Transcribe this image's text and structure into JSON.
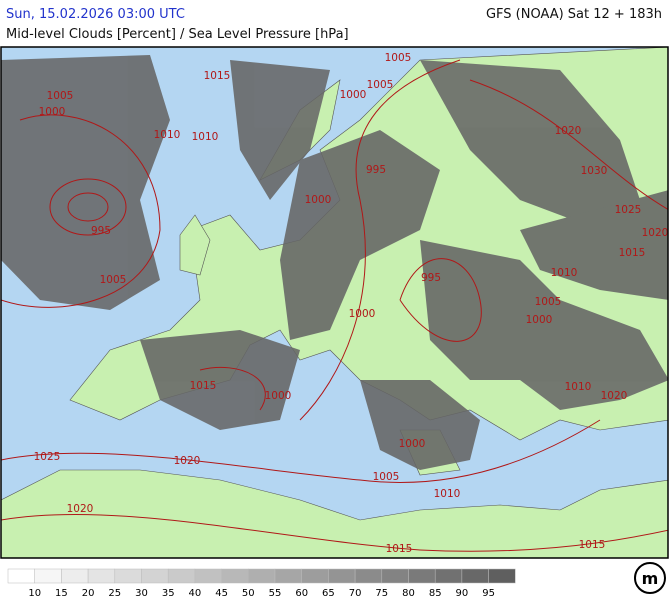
{
  "header": {
    "valid_time": "Sun, 15.02.2026 03:00 UTC",
    "model_run": "GFS (NOAA) Sat 12 + 183h",
    "title": "Mid-level Clouds [Percent] / Sea Level Pressure [hPa]"
  },
  "isobars": {
    "labels": [
      1005,
      1015,
      1005,
      1000,
      1000,
      1005,
      1010,
      1010,
      1020,
      1030,
      995,
      1000,
      995,
      1025,
      1020,
      1015,
      1010,
      1005,
      995,
      1005,
      1000,
      1000,
      1015,
      1000,
      1010,
      1020,
      1000,
      1025,
      1020,
      1005,
      1010,
      1020,
      1015,
      1015
    ]
  },
  "legend": {
    "levels": [
      10,
      15,
      20,
      25,
      30,
      35,
      40,
      45,
      50,
      55,
      60,
      65,
      70,
      75,
      80,
      85,
      90,
      95
    ]
  },
  "logo": "m"
}
